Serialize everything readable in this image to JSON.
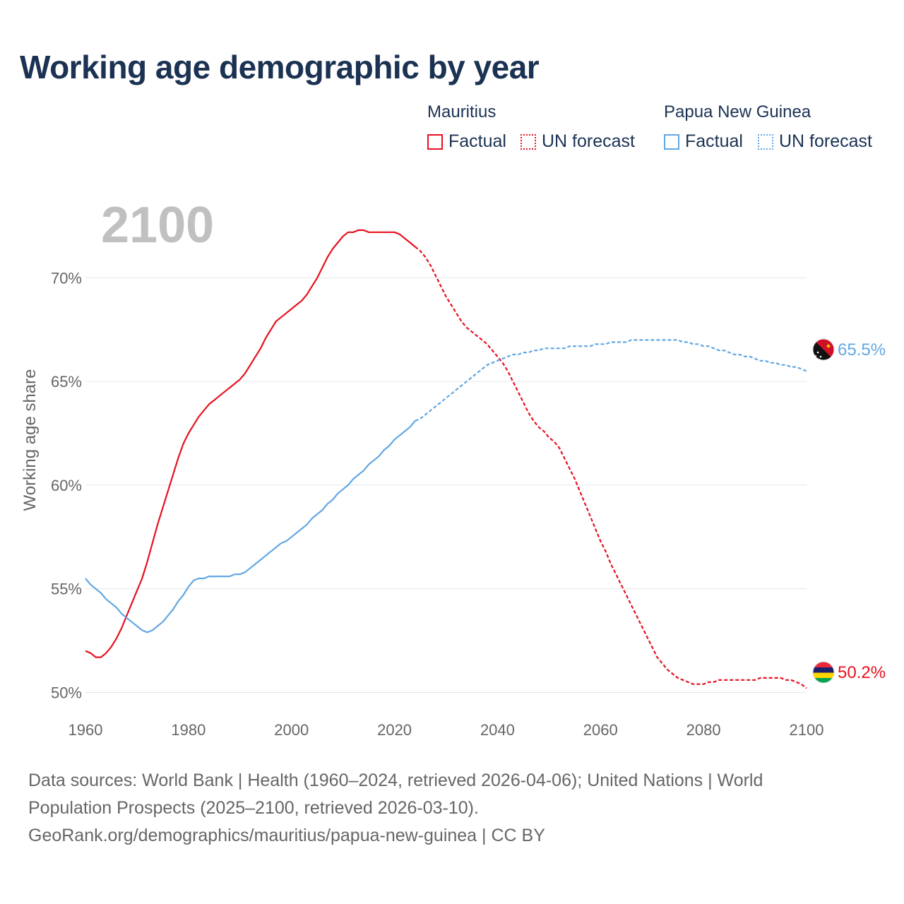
{
  "title": "Working age demographic by year",
  "year_label": "2100",
  "legend": {
    "groups": [
      {
        "name": "Mauritius",
        "factual": "Factual",
        "forecast": "UN forecast",
        "color": "#e8101f"
      },
      {
        "name": "Papua New Guinea",
        "factual": "Factual",
        "forecast": "UN forecast",
        "color": "#62a7e3"
      }
    ]
  },
  "end_labels": {
    "png": "65.5%",
    "mauritius": "50.2%"
  },
  "source": {
    "line1": "Data sources: World Bank | Health (1960–2024, retrieved 2026-04-06); United Nations | World",
    "line2": "Population Prospects (2025–2100, retrieved 2026-03-10).",
    "line3": "GeoRank.org/demographics/mauritius/papua-new-guinea | CC BY"
  },
  "chart_data": {
    "type": "line",
    "title": "Working age demographic by year",
    "xlabel": "",
    "ylabel": "Working age share",
    "xlim": [
      1960,
      2100
    ],
    "ylim": [
      49.3,
      72.5
    ],
    "x_ticks": [
      1960,
      1980,
      2000,
      2020,
      2040,
      2060,
      2080,
      2100
    ],
    "y_ticks": [
      50,
      55,
      60,
      65,
      70
    ],
    "x_tick_labels": [
      "1960",
      "1980",
      "2000",
      "2020",
      "2040",
      "2060",
      "2080",
      "2100"
    ],
    "y_tick_labels": [
      "50%",
      "55%",
      "60%",
      "65%",
      "70%"
    ],
    "grid": true,
    "series": [
      {
        "name": "Mauritius",
        "color": "#e8101f",
        "factual": {
          "x": [
            1960,
            1961,
            1962,
            1963,
            1964,
            1965,
            1966,
            1967,
            1968,
            1969,
            1970,
            1971,
            1972,
            1973,
            1974,
            1975,
            1976,
            1977,
            1978,
            1979,
            1980,
            1981,
            1982,
            1983,
            1984,
            1985,
            1986,
            1987,
            1988,
            1989,
            1990,
            1991,
            1992,
            1993,
            1994,
            1995,
            1996,
            1997,
            1998,
            1999,
            2000,
            2001,
            2002,
            2003,
            2004,
            2005,
            2006,
            2007,
            2008,
            2009,
            2010,
            2011,
            2012,
            2013,
            2014,
            2015,
            2016,
            2017,
            2018,
            2019,
            2020,
            2021,
            2022,
            2023,
            2024
          ],
          "y": [
            52.0,
            51.9,
            51.7,
            51.7,
            51.9,
            52.2,
            52.6,
            53.1,
            53.7,
            54.3,
            54.9,
            55.5,
            56.3,
            57.2,
            58.1,
            58.9,
            59.7,
            60.5,
            61.3,
            62.0,
            62.5,
            62.9,
            63.3,
            63.6,
            63.9,
            64.1,
            64.3,
            64.5,
            64.7,
            64.9,
            65.1,
            65.4,
            65.8,
            66.2,
            66.6,
            67.1,
            67.5,
            67.9,
            68.1,
            68.3,
            68.5,
            68.7,
            68.9,
            69.2,
            69.6,
            70.0,
            70.5,
            71.0,
            71.4,
            71.7,
            72.0,
            72.2,
            72.2,
            72.3,
            72.3,
            72.2,
            72.2,
            72.2,
            72.2,
            72.2,
            72.2,
            72.1,
            71.9,
            71.7,
            71.5
          ]
        },
        "forecast": {
          "x": [
            2024,
            2025,
            2026,
            2027,
            2028,
            2029,
            2030,
            2031,
            2032,
            2033,
            2034,
            2035,
            2036,
            2037,
            2038,
            2039,
            2040,
            2041,
            2042,
            2043,
            2044,
            2045,
            2046,
            2047,
            2048,
            2049,
            2050,
            2051,
            2052,
            2053,
            2054,
            2055,
            2056,
            2057,
            2058,
            2059,
            2060,
            2061,
            2062,
            2063,
            2064,
            2065,
            2066,
            2067,
            2068,
            2069,
            2070,
            2071,
            2072,
            2073,
            2074,
            2075,
            2076,
            2077,
            2078,
            2079,
            2080,
            2081,
            2082,
            2083,
            2084,
            2085,
            2086,
            2087,
            2088,
            2089,
            2090,
            2091,
            2092,
            2093,
            2094,
            2095,
            2096,
            2097,
            2098,
            2099,
            2100
          ],
          "y": [
            71.5,
            71.3,
            71.0,
            70.6,
            70.1,
            69.6,
            69.1,
            68.7,
            68.3,
            67.9,
            67.6,
            67.4,
            67.2,
            67.0,
            66.8,
            66.5,
            66.2,
            65.9,
            65.5,
            65.0,
            64.5,
            64.0,
            63.5,
            63.1,
            62.8,
            62.6,
            62.3,
            62.1,
            61.8,
            61.3,
            60.8,
            60.3,
            59.7,
            59.1,
            58.5,
            57.9,
            57.3,
            56.8,
            56.2,
            55.7,
            55.2,
            54.7,
            54.2,
            53.7,
            53.2,
            52.7,
            52.2,
            51.7,
            51.4,
            51.1,
            50.9,
            50.7,
            50.6,
            50.5,
            50.4,
            50.4,
            50.4,
            50.5,
            50.5,
            50.6,
            50.6,
            50.6,
            50.6,
            50.6,
            50.6,
            50.6,
            50.6,
            50.7,
            50.7,
            50.7,
            50.7,
            50.7,
            50.6,
            50.6,
            50.5,
            50.4,
            50.2
          ]
        }
      },
      {
        "name": "Papua New Guinea",
        "color": "#62a7e3",
        "factual": {
          "x": [
            1960,
            1961,
            1962,
            1963,
            1964,
            1965,
            1966,
            1967,
            1968,
            1969,
            1970,
            1971,
            1972,
            1973,
            1974,
            1975,
            1976,
            1977,
            1978,
            1979,
            1980,
            1981,
            1982,
            1983,
            1984,
            1985,
            1986,
            1987,
            1988,
            1989,
            1990,
            1991,
            1992,
            1993,
            1994,
            1995,
            1996,
            1997,
            1998,
            1999,
            2000,
            2001,
            2002,
            2003,
            2004,
            2005,
            2006,
            2007,
            2008,
            2009,
            2010,
            2011,
            2012,
            2013,
            2014,
            2015,
            2016,
            2017,
            2018,
            2019,
            2020,
            2021,
            2022,
            2023,
            2024
          ],
          "y": [
            55.5,
            55.2,
            55.0,
            54.8,
            54.5,
            54.3,
            54.1,
            53.8,
            53.6,
            53.4,
            53.2,
            53.0,
            52.9,
            53.0,
            53.2,
            53.4,
            53.7,
            54.0,
            54.4,
            54.7,
            55.1,
            55.4,
            55.5,
            55.5,
            55.6,
            55.6,
            55.6,
            55.6,
            55.6,
            55.7,
            55.7,
            55.8,
            56.0,
            56.2,
            56.4,
            56.6,
            56.8,
            57.0,
            57.2,
            57.3,
            57.5,
            57.7,
            57.9,
            58.1,
            58.4,
            58.6,
            58.8,
            59.1,
            59.3,
            59.6,
            59.8,
            60.0,
            60.3,
            60.5,
            60.7,
            61.0,
            61.2,
            61.4,
            61.7,
            61.9,
            62.2,
            62.4,
            62.6,
            62.8,
            63.1
          ]
        },
        "forecast": {
          "x": [
            2024,
            2025,
            2026,
            2027,
            2028,
            2029,
            2030,
            2031,
            2032,
            2033,
            2034,
            2035,
            2036,
            2037,
            2038,
            2039,
            2040,
            2041,
            2042,
            2043,
            2044,
            2045,
            2046,
            2047,
            2048,
            2049,
            2050,
            2051,
            2052,
            2053,
            2054,
            2055,
            2056,
            2057,
            2058,
            2059,
            2060,
            2061,
            2062,
            2063,
            2064,
            2065,
            2066,
            2067,
            2068,
            2069,
            2070,
            2071,
            2072,
            2073,
            2074,
            2075,
            2076,
            2077,
            2078,
            2079,
            2080,
            2081,
            2082,
            2083,
            2084,
            2085,
            2086,
            2087,
            2088,
            2089,
            2090,
            2091,
            2092,
            2093,
            2094,
            2095,
            2096,
            2097,
            2098,
            2099,
            2100
          ],
          "y": [
            63.1,
            63.2,
            63.4,
            63.6,
            63.8,
            64.0,
            64.2,
            64.4,
            64.6,
            64.8,
            65.0,
            65.2,
            65.4,
            65.6,
            65.8,
            65.9,
            66.0,
            66.1,
            66.2,
            66.3,
            66.3,
            66.4,
            66.4,
            66.5,
            66.5,
            66.6,
            66.6,
            66.6,
            66.6,
            66.6,
            66.7,
            66.7,
            66.7,
            66.7,
            66.7,
            66.8,
            66.8,
            66.8,
            66.9,
            66.9,
            66.9,
            66.9,
            67.0,
            67.0,
            67.0,
            67.0,
            67.0,
            67.0,
            67.0,
            67.0,
            67.0,
            67.0,
            66.9,
            66.9,
            66.8,
            66.8,
            66.7,
            66.7,
            66.6,
            66.5,
            66.5,
            66.4,
            66.3,
            66.3,
            66.2,
            66.2,
            66.1,
            66.0,
            66.0,
            65.9,
            65.9,
            65.8,
            65.8,
            65.7,
            65.7,
            65.6,
            65.5
          ]
        }
      }
    ]
  }
}
